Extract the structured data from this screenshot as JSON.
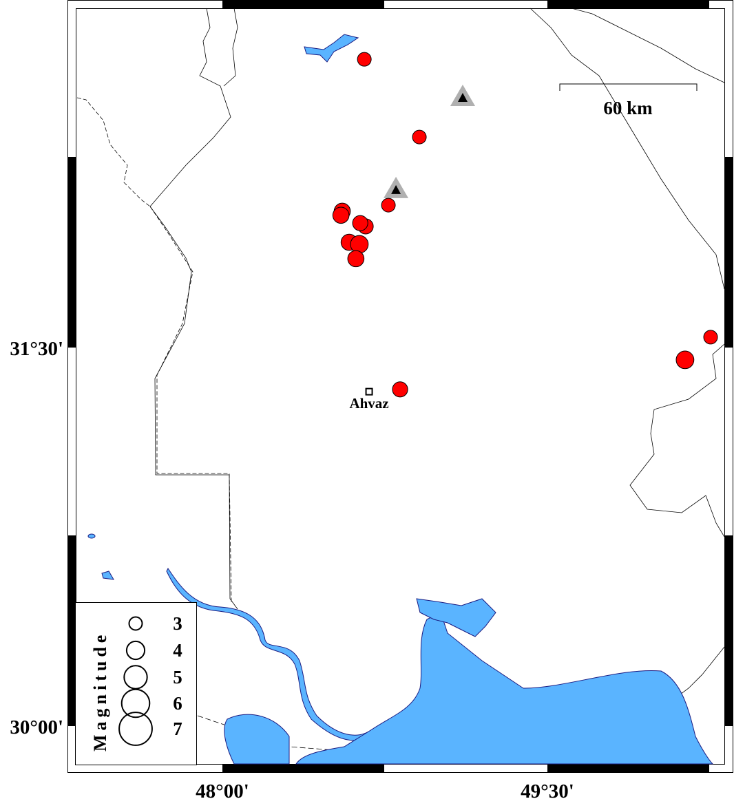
{
  "map": {
    "scale_bar_label": "60 km",
    "lon_ticks": [
      {
        "value": 48.0,
        "label": "48°00'"
      },
      {
        "value": 49.5,
        "label": "49°30'"
      }
    ],
    "lat_ticks": [
      {
        "value": 31.5,
        "label": "31°30'"
      },
      {
        "value": 30.0,
        "label": "30°00'"
      }
    ],
    "colors": {
      "earthquake": "#ff0000",
      "water": "#5ab4ff",
      "coast": "#1a1a80",
      "station_outer": "#b0b0b0",
      "station_inner": "#000000"
    },
    "city": {
      "name": "Ahvaz",
      "lon": 48.677,
      "lat": 31.325
    },
    "stations": [
      {
        "lon": 49.109,
        "lat": 32.487
      },
      {
        "lon": 48.801,
        "lat": 32.122
      }
    ],
    "earthquakes": [
      {
        "lon": 48.655,
        "lat": 32.642,
        "mag": 3.0
      },
      {
        "lon": 48.909,
        "lat": 32.334,
        "mag": 3.0
      },
      {
        "lon": 48.766,
        "lat": 32.064,
        "mag": 3.0
      },
      {
        "lon": 48.553,
        "lat": 32.04,
        "mag": 3.5
      },
      {
        "lon": 48.547,
        "lat": 32.024,
        "mag": 3.5
      },
      {
        "lon": 48.661,
        "lat": 31.98,
        "mag": 3.3
      },
      {
        "lon": 48.636,
        "lat": 31.993,
        "mag": 3.3
      },
      {
        "lon": 48.585,
        "lat": 31.917,
        "mag": 3.5
      },
      {
        "lon": 48.632,
        "lat": 31.909,
        "mag": 3.8
      },
      {
        "lon": 48.616,
        "lat": 31.852,
        "mag": 3.5
      },
      {
        "lon": 48.82,
        "lat": 31.334,
        "mag": 3.3
      },
      {
        "lon": 50.135,
        "lat": 31.451,
        "mag": 3.8
      },
      {
        "lon": 50.253,
        "lat": 31.541,
        "mag": 3.0
      }
    ],
    "legend": {
      "title": "Magnitude",
      "items": [
        {
          "mag": 3,
          "label": "3"
        },
        {
          "mag": 4,
          "label": "4"
        },
        {
          "mag": 5,
          "label": "5"
        },
        {
          "mag": 6,
          "label": "6"
        },
        {
          "mag": 7,
          "label": "7"
        }
      ]
    }
  }
}
